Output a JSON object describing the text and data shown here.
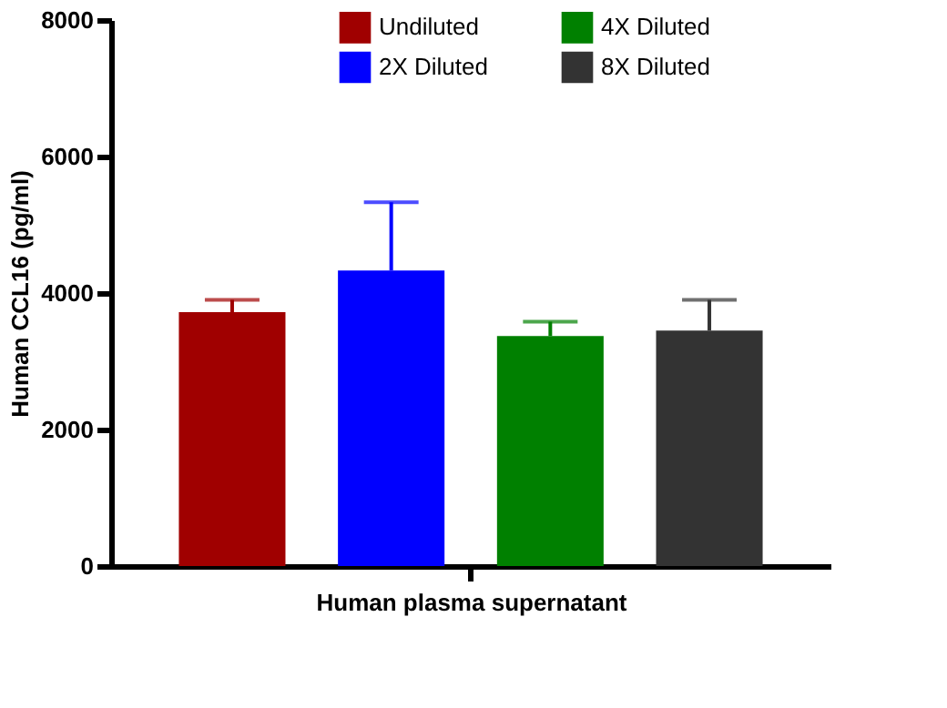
{
  "chart_data": {
    "type": "bar",
    "xlabel": "Human plasma supernatant",
    "ylabel": "Human CCL16 (pg/ml)",
    "categories": [
      null
    ],
    "series": [
      {
        "name": "Undiluted",
        "color": "#a00000",
        "values": [
          3720
        ],
        "errors": [
          [
            3720,
            3900
          ]
        ]
      },
      {
        "name": "2X Diluted",
        "color": "#0000ff",
        "values": [
          4330
        ],
        "errors": [
          [
            4330,
            5330
          ]
        ]
      },
      {
        "name": "4X Diluted",
        "color": "#008000",
        "values": [
          3370
        ],
        "errors": [
          [
            3370,
            3580
          ]
        ]
      },
      {
        "name": "8X Diluted",
        "color": "#333333",
        "values": [
          3450
        ],
        "errors": [
          [
            3450,
            3900
          ]
        ]
      }
    ],
    "ylim": [
      0,
      8000
    ],
    "yticks": [
      0,
      2000,
      4000,
      6000,
      8000
    ],
    "grid": false,
    "legend": "top"
  }
}
